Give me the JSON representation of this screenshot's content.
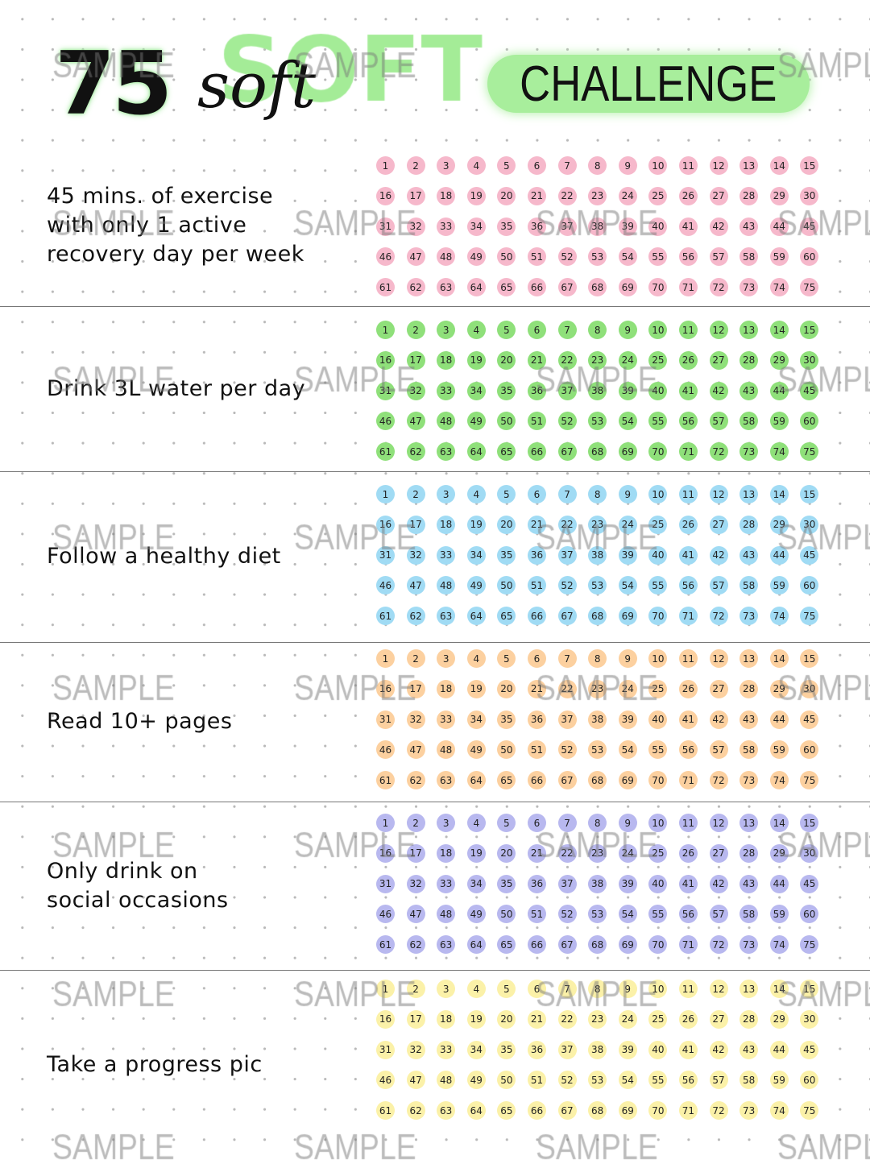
{
  "header": {
    "number": "75",
    "soft_block": "SOFT",
    "soft_script": "soft",
    "challenge": "CHALLENGE"
  },
  "watermark": "SAMPLE",
  "colors": {
    "title_green": "#a8ee9c",
    "pink": "#f6b8cb",
    "green": "#8fe07a",
    "blue": "#a0dbf4",
    "orange": "#fcd09f",
    "purple": "#b8b8ef",
    "yellow": "#fbf1a8"
  },
  "days_total": 75,
  "sections": [
    {
      "label": "45 mins. of exercise\nwith only 1 active\nrecovery day per week",
      "color": "#f6b8cb"
    },
    {
      "label": "Drink 3L water per day",
      "color": "#8fe07a"
    },
    {
      "label": "Follow a healthy diet",
      "color": "#a0dbf4"
    },
    {
      "label": "Read 10+ pages",
      "color": "#fcd09f"
    },
    {
      "label": "Only drink on\nsocial occasions",
      "color": "#b8b8ef"
    },
    {
      "label": "Take a progress pic",
      "color": "#fbf1a8"
    }
  ]
}
